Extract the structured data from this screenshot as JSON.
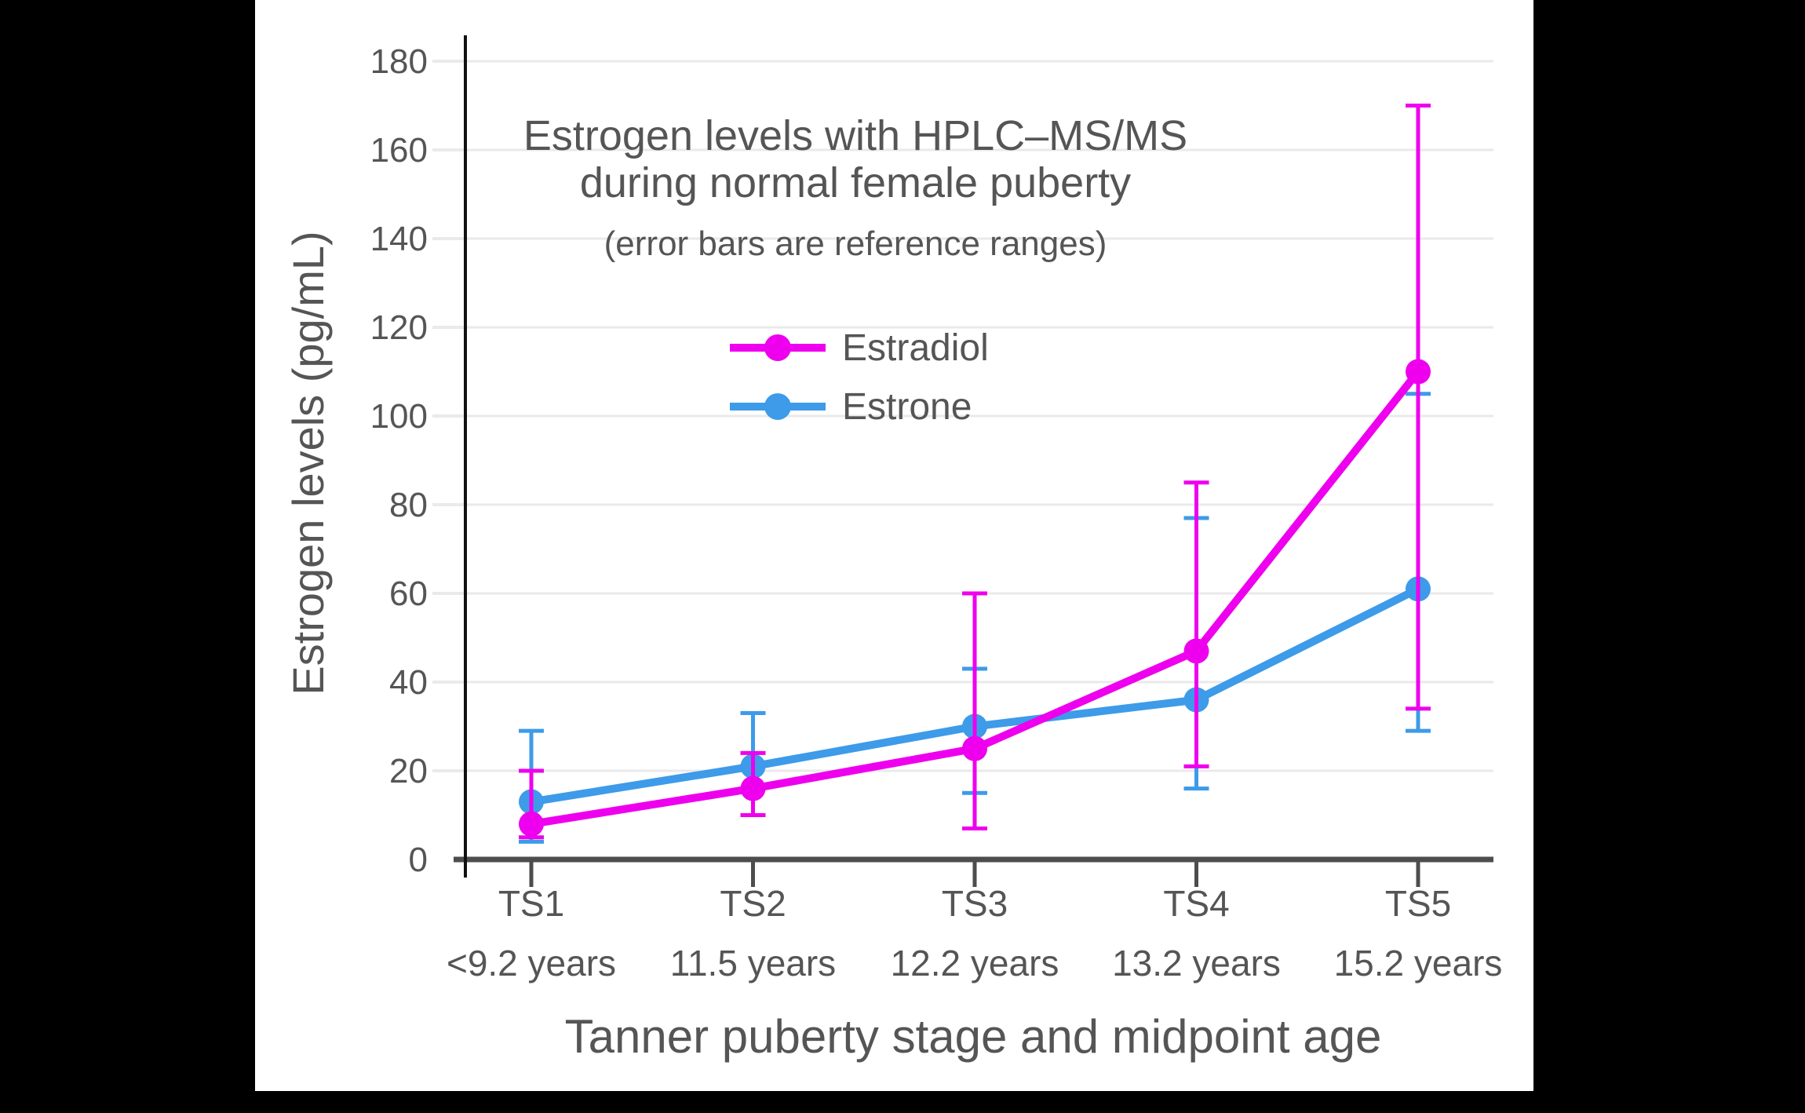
{
  "colors": {
    "background": "#000000",
    "panel": "#FFFFFF",
    "grid": "#EAEAEA",
    "x_axis": "#4D4D4D",
    "y_axis": "#111111",
    "text": "#555555"
  },
  "chart_data": {
    "type": "line",
    "title": "Estrogen levels with HPLC–MS/MS during normal female puberty",
    "title_lines": [
      "Estrogen levels with HPLC–MS/MS",
      "during normal female puberty"
    ],
    "subtitle": "(error bars are reference ranges)",
    "xlabel": "Tanner puberty stage and midpoint age",
    "ylabel": "Estrogen levels (pg/mL)",
    "categories": [
      "TS1",
      "TS2",
      "TS3",
      "TS4",
      "TS5"
    ],
    "category_sublabels": [
      "<9.2 years",
      "11.5 years",
      "12.2 years",
      "13.2 years",
      "15.2 years"
    ],
    "y_ticks": [
      0,
      20,
      40,
      60,
      80,
      100,
      120,
      140,
      160,
      180
    ],
    "ylim": [
      0,
      186
    ],
    "grid": true,
    "legend_position": "inside-top-center",
    "error_bars_meaning": "reference ranges",
    "series": [
      {
        "name": "Estradiol",
        "color": "#EE00EE",
        "values": [
          8,
          16,
          25,
          47,
          110
        ],
        "range_low": [
          5,
          10,
          7,
          21,
          34
        ],
        "range_high": [
          20,
          24,
          60,
          85,
          170
        ]
      },
      {
        "name": "Estrone",
        "color": "#3D9BE9",
        "values": [
          13,
          21,
          30,
          36,
          61
        ],
        "range_low": [
          4,
          10,
          15,
          16,
          29
        ],
        "range_high": [
          29,
          33,
          43,
          77,
          105
        ]
      }
    ]
  }
}
